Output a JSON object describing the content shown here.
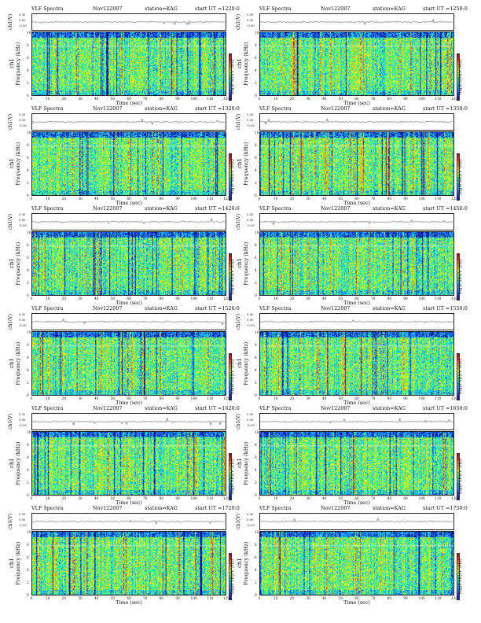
{
  "panel_header": {
    "title": "VLF Spectra",
    "date": "Nov122007",
    "station": "station=KAG"
  },
  "labels": {
    "wave_ylabel": "ch1(V)",
    "spec_ylabel": "Frequency (kHz)",
    "spec_ylabel_ch": "ch1",
    "xlabel": "Time (sec)",
    "colorbar_label": "log(PSD)(V²/Hz)"
  },
  "wave_ticks": [
    "0.30",
    "0.00",
    "-0.30"
  ],
  "freq_ticks": [
    "0",
    "2",
    "4",
    "6",
    "8",
    "10"
  ],
  "time_ticks": [
    "0",
    "10",
    "20",
    "30",
    "40",
    "50",
    "60",
    "70",
    "80",
    "90",
    "100",
    "110",
    "120"
  ],
  "colorbar_ticks": [
    "-4",
    "-5",
    "-6",
    "-7",
    "-8"
  ],
  "panels": [
    {
      "ut": "start UT =1220:0"
    },
    {
      "ut": "start UT =1250:0"
    },
    {
      "ut": "start UT =1320:0"
    },
    {
      "ut": "start UT =1350:0"
    },
    {
      "ut": "start UT =1420:0"
    },
    {
      "ut": "start UT =1450:0"
    },
    {
      "ut": "start UT =1520:0"
    },
    {
      "ut": "start UT =1550:0"
    },
    {
      "ut": "start UT =1620:0"
    },
    {
      "ut": "start UT =1650:0"
    },
    {
      "ut": "start UT =1720:0"
    },
    {
      "ut": "start UT =1750:0"
    }
  ],
  "chart_data": {
    "type": "heatmap",
    "title": "VLF Spectra",
    "xlabel": "Time (sec)",
    "ylabel": "Frequency (kHz)",
    "xlim": [
      0,
      120
    ],
    "ylim": [
      0,
      10
    ],
    "colorbar": "log(PSD)(V²/Hz)",
    "colormap": [
      "#0a0f8c",
      "#1f57ff",
      "#14c7ff",
      "#3bff7a",
      "#d7ff1a",
      "#ffb000",
      "#ff2a00",
      "#b0001a"
    ],
    "panels": 12
  }
}
